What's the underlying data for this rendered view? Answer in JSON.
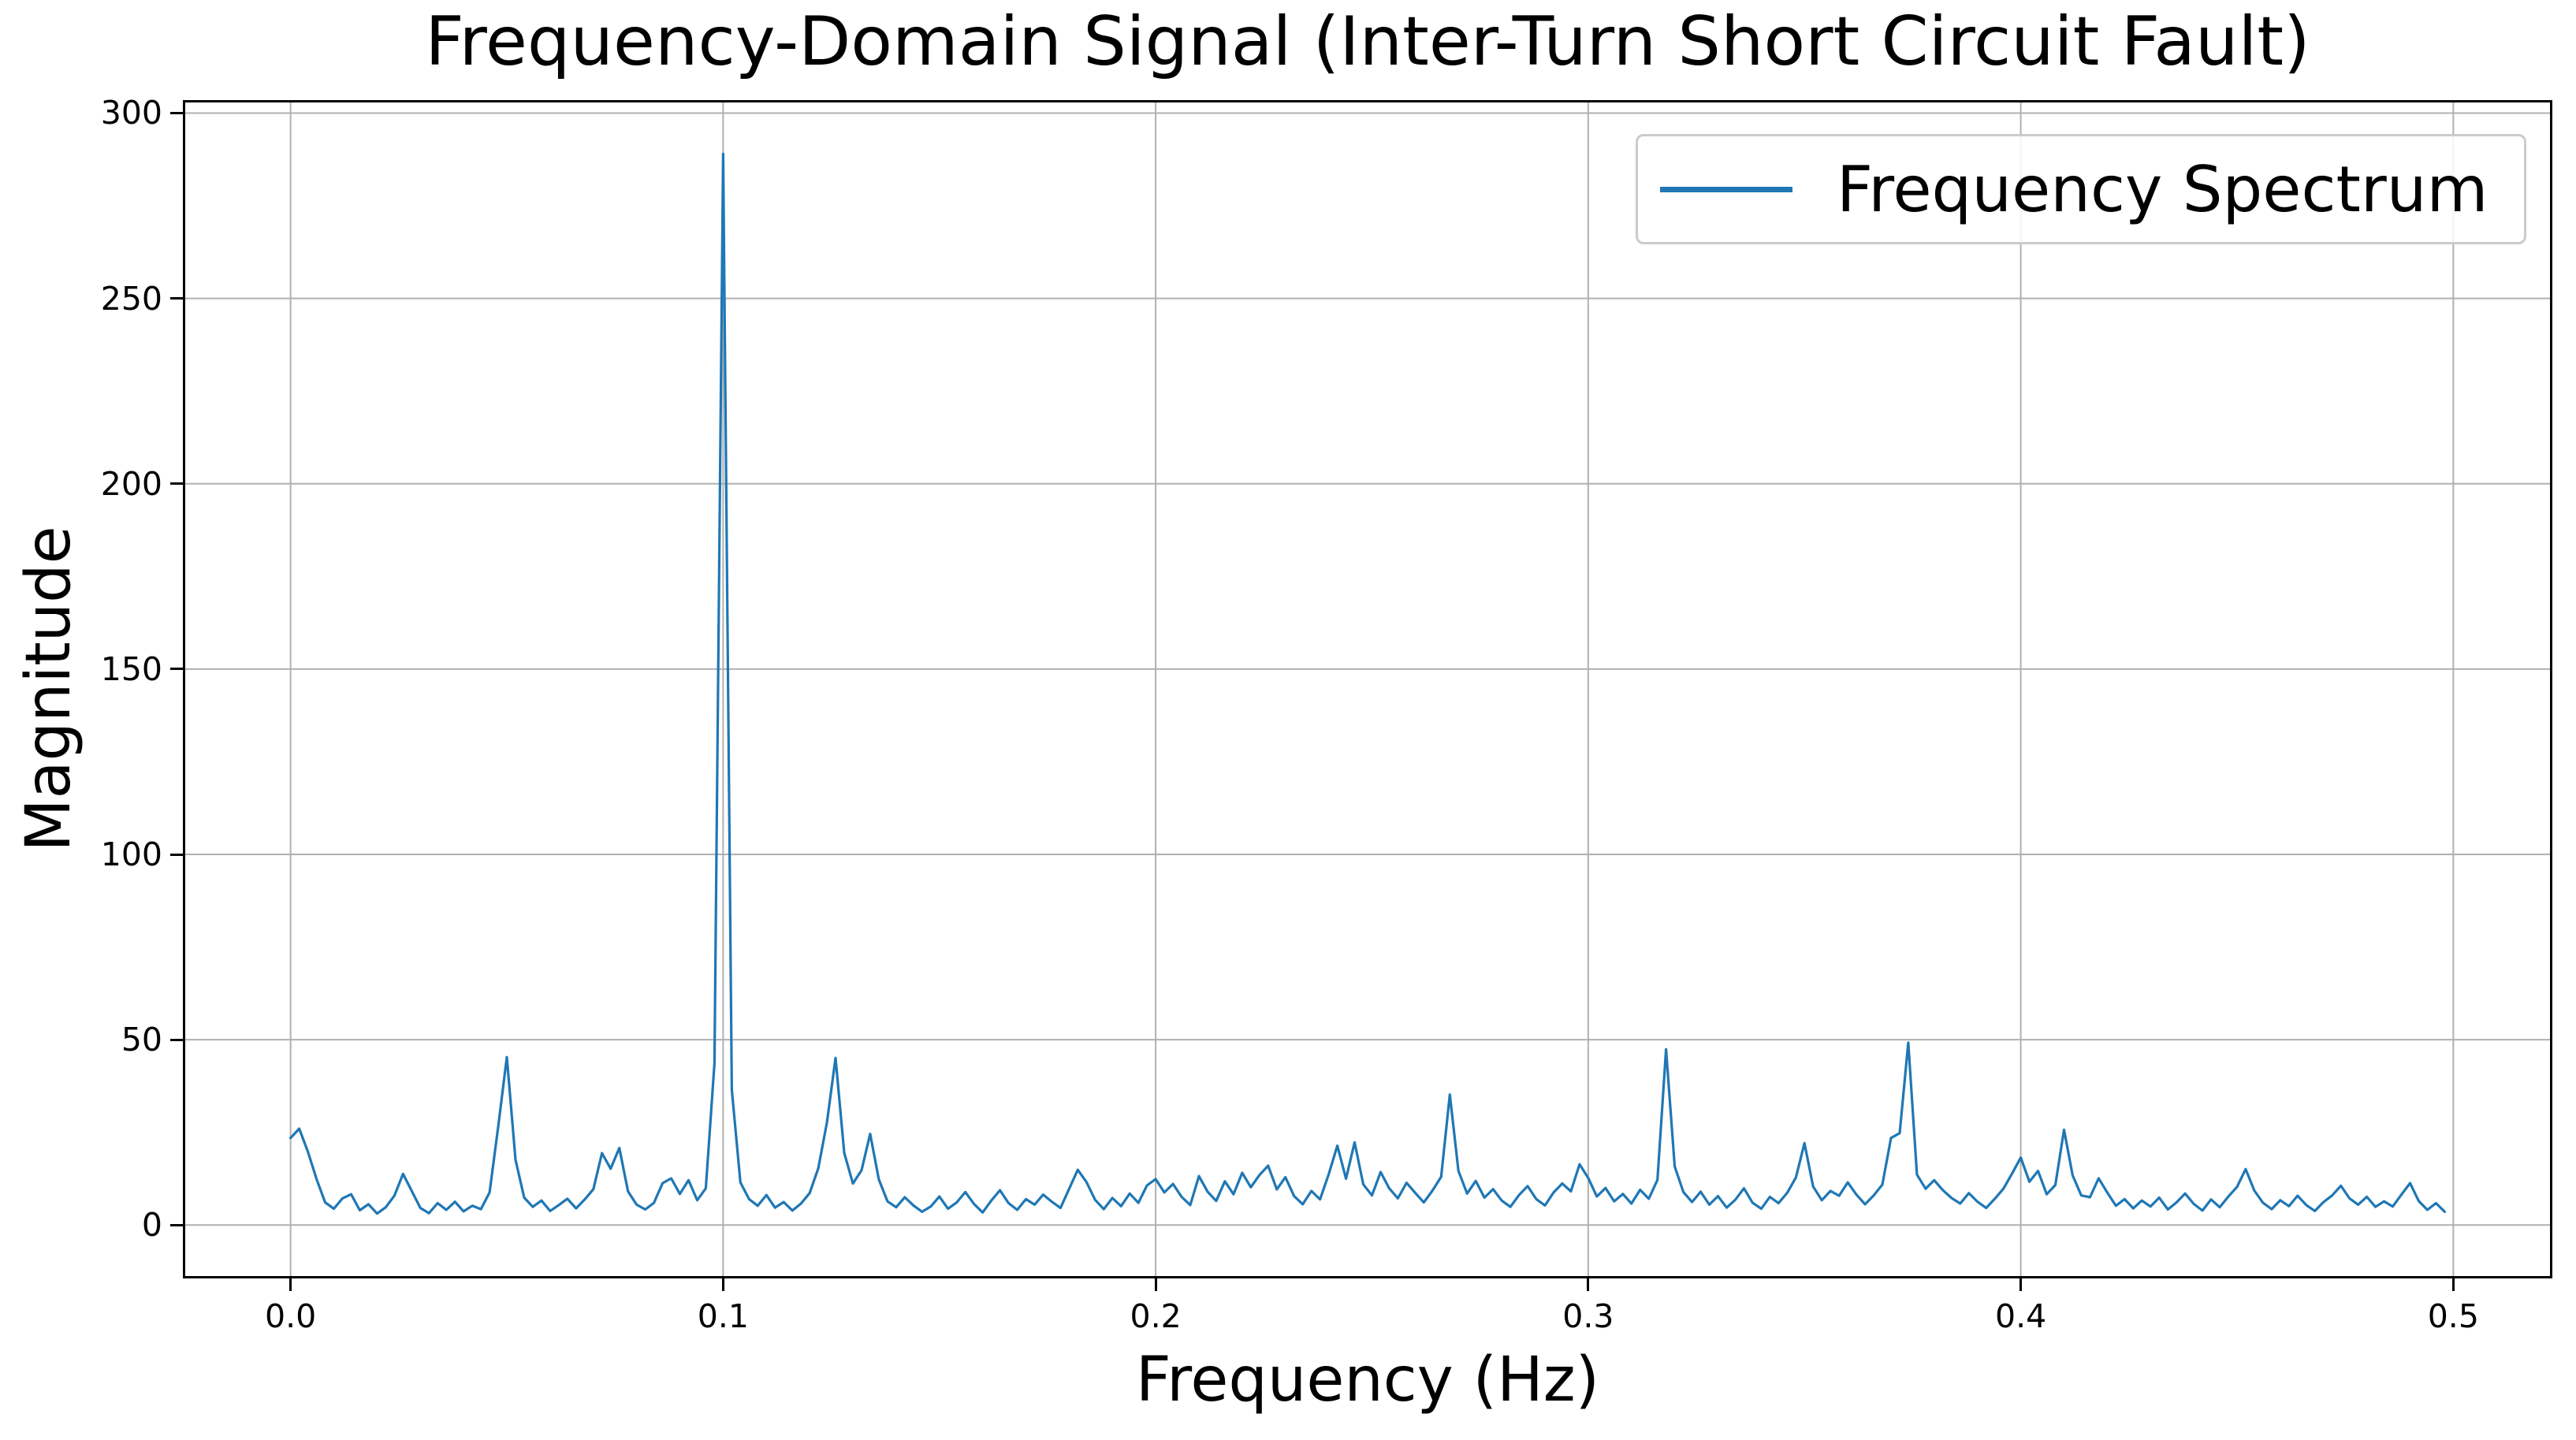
{
  "chart_data": {
    "type": "line",
    "title": "Frequency-Domain Signal (Inter-Turn Short Circuit Fault)",
    "xlabel": "Frequency (Hz)",
    "ylabel": "Magnitude",
    "legend": {
      "label": "Frequency Spectrum",
      "position": "upper right"
    },
    "line_color": "#1f77b4",
    "grid": true,
    "grid_color": "#b0b0b0",
    "xlim": [
      -0.0249,
      0.5229
    ],
    "ylim": [
      -14.4,
      303.5
    ],
    "xticks": {
      "values": [
        0.0,
        0.1,
        0.2,
        0.3,
        0.4,
        0.5
      ],
      "labels": [
        "0.0",
        "0.1",
        "0.2",
        "0.3",
        "0.4",
        "0.5"
      ]
    },
    "yticks": {
      "values": [
        0,
        50,
        100,
        150,
        200,
        250,
        300
      ],
      "labels": [
        "0",
        "50",
        "100",
        "150",
        "200",
        "250",
        "300"
      ]
    },
    "series": [
      {
        "name": "Frequency Spectrum",
        "x_start": 0.0,
        "x_step": 0.002,
        "y": [
          23.5,
          26.0,
          19.8,
          12.4,
          6.1,
          4.4,
          7.2,
          8.3,
          4.0,
          5.6,
          3.1,
          4.8,
          7.9,
          13.8,
          9.2,
          4.6,
          3.2,
          5.9,
          4.1,
          6.3,
          3.7,
          5.2,
          4.3,
          8.8,
          26.5,
          45.3,
          17.6,
          7.4,
          4.9,
          6.6,
          3.8,
          5.4,
          7.1,
          4.5,
          6.9,
          9.7,
          19.4,
          15.2,
          20.8,
          9.1,
          5.5,
          4.2,
          6.0,
          11.3,
          12.6,
          8.4,
          12.1,
          6.7,
          9.9,
          43.6,
          289.0,
          36.5,
          11.5,
          7.0,
          5.2,
          8.1,
          4.7,
          6.2,
          3.9,
          5.8,
          8.6,
          15.3,
          27.7,
          45.1,
          19.5,
          11.2,
          14.8,
          24.6,
          12.3,
          6.4,
          4.8,
          7.5,
          5.3,
          3.6,
          5.0,
          7.7,
          4.4,
          6.1,
          8.9,
          5.7,
          3.4,
          6.6,
          9.4,
          5.9,
          4.1,
          7.0,
          5.5,
          8.2,
          6.3,
          4.6,
          9.8,
          14.9,
          11.6,
          6.8,
          4.3,
          7.3,
          5.1,
          8.5,
          6.0,
          10.7,
          12.4,
          8.8,
          11.1,
          7.6,
          5.4,
          13.2,
          9.0,
          6.5,
          11.8,
          8.3,
          14.1,
          10.2,
          13.5,
          16.0,
          9.6,
          12.9,
          7.8,
          5.6,
          9.2,
          6.9,
          13.7,
          21.4,
          12.5,
          22.3,
          11.0,
          8.0,
          14.3,
          9.9,
          7.2,
          11.4,
          8.7,
          6.1,
          9.3,
          13.0,
          35.2,
          14.6,
          8.5,
          11.9,
          7.4,
          9.7,
          6.6,
          4.9,
          8.1,
          10.5,
          7.0,
          5.3,
          8.8,
          11.2,
          9.1,
          16.4,
          12.7,
          7.7,
          10.0,
          6.4,
          8.4,
          5.8,
          9.5,
          7.1,
          12.2,
          47.4,
          15.8,
          8.9,
          6.2,
          9.0,
          5.5,
          7.8,
          4.7,
          6.8,
          9.9,
          6.0,
          4.4,
          7.6,
          5.9,
          8.7,
          12.8,
          22.1,
          10.4,
          6.7,
          9.2,
          7.9,
          11.5,
          8.2,
          5.6,
          8.0,
          10.9,
          23.5,
          24.8,
          49.2,
          13.6,
          9.8,
          12.1,
          9.4,
          7.3,
          5.8,
          8.6,
          6.3,
          4.6,
          7.1,
          9.8,
          13.9,
          18.2,
          11.7,
          14.6,
          8.3,
          10.8,
          25.7,
          13.4,
          8.0,
          7.5,
          12.6,
          8.8,
          5.2,
          7.0,
          4.5,
          6.6,
          5.0,
          7.4,
          4.2,
          6.1,
          8.5,
          5.7,
          3.9,
          6.9,
          4.8,
          7.7,
          10.3,
          15.1,
          9.3,
          6.0,
          4.3,
          6.7,
          5.1,
          7.9,
          5.4,
          3.8,
          6.2,
          8.0,
          10.6,
          7.2,
          5.5,
          7.6,
          4.9,
          6.4,
          5.0,
          8.2,
          11.3,
          6.5,
          4.1,
          5.9,
          3.6
        ]
      }
    ]
  }
}
